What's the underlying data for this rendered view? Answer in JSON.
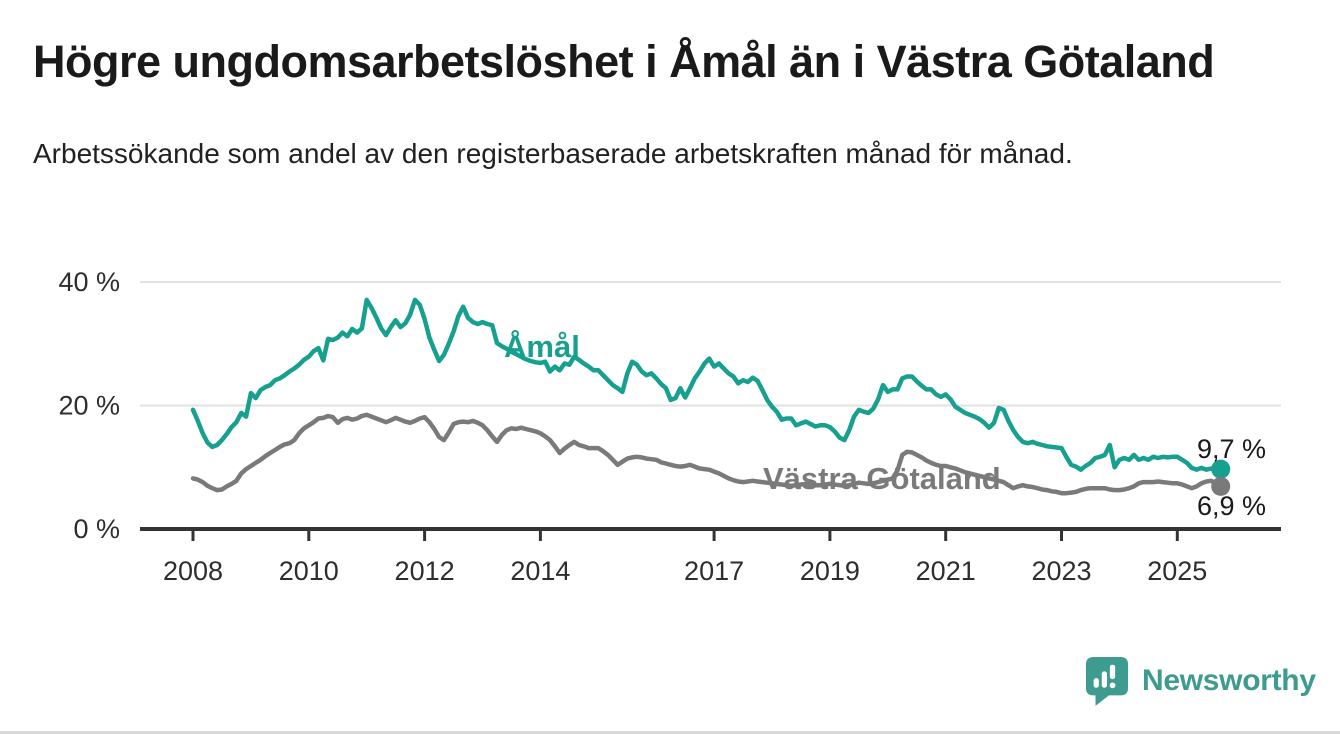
{
  "header": {
    "title": "Högre ungdomsarbetslöshet i Åmål än i Västra Götaland",
    "subtitle": "Arbetssökande som andel av den registerbaserade arbetskraften månad för månad."
  },
  "branding": {
    "logo_text": "Newsworthy",
    "logo_color": "#3d9b8f",
    "logo_icon": "bar-chart-speech-bubble-icon"
  },
  "chart_data": {
    "type": "line",
    "title": "Högre ungdomsarbetslöshet i Åmål än i Västra Götaland",
    "subtitle": "Arbetssökande som andel av den registerbaserade arbetskraften månad för månad.",
    "unit": "%",
    "grid": "horizontal",
    "legend_position": "inline-labels",
    "x_range": {
      "start": "2008-01",
      "end": "2025-10",
      "frequency": "monthly"
    },
    "ylim": [
      0,
      44
    ],
    "y_ticks": [
      {
        "label": "0 %",
        "value": 0
      },
      {
        "label": "20 %",
        "value": 20
      },
      {
        "label": "40 %",
        "value": 40
      }
    ],
    "x_ticks": [
      {
        "label": "2008",
        "year": 2008
      },
      {
        "label": "2010",
        "year": 2010
      },
      {
        "label": "2012",
        "year": 2012
      },
      {
        "label": "2014",
        "year": 2014
      },
      {
        "label": "2017",
        "year": 2017
      },
      {
        "label": "2019",
        "year": 2019
      },
      {
        "label": "2021",
        "year": 2021
      },
      {
        "label": "2023",
        "year": 2023
      },
      {
        "label": "2025",
        "year": 2025
      }
    ],
    "gridline_color": "#e2e2e2",
    "axis_color": "#333333",
    "series": [
      {
        "name": "Åmål",
        "color": "#17a08f",
        "end_label": "9,7 %",
        "end_value": 9.7,
        "values": [
          19.3,
          17.5,
          15.5,
          14.0,
          13.3,
          13.6,
          14.4,
          15.4,
          16.5,
          17.3,
          18.8,
          18.2,
          22.0,
          21.2,
          22.5,
          23.0,
          23.3,
          24.1,
          24.4,
          24.9,
          25.5,
          26.0,
          26.6,
          27.4,
          27.9,
          28.8,
          29.3,
          27.3,
          30.8,
          30.6,
          31.0,
          31.8,
          31.2,
          32.4,
          31.8,
          32.5,
          37.1,
          35.8,
          34.2,
          32.5,
          31.4,
          32.7,
          33.8,
          32.7,
          33.3,
          34.7,
          37.1,
          36.3,
          34.0,
          31.0,
          29.0,
          27.2,
          28.2,
          30.0,
          32.0,
          34.5,
          36.0,
          34.2,
          33.5,
          33.2,
          33.5,
          33.2,
          33.0,
          30.1,
          29.6,
          29.2,
          28.7,
          28.3,
          27.9,
          27.5,
          27.2,
          27.0,
          26.9,
          27.1,
          25.5,
          26.3,
          25.7,
          26.8,
          26.6,
          27.9,
          27.4,
          26.8,
          26.3,
          25.7,
          25.7,
          24.9,
          24.1,
          23.3,
          22.8,
          22.2,
          25.2,
          27.1,
          26.6,
          25.5,
          24.9,
          25.2,
          24.4,
          23.5,
          22.8,
          20.9,
          21.2,
          22.8,
          21.3,
          22.8,
          24.4,
          25.5,
          26.8,
          27.6,
          26.3,
          26.8,
          26.0,
          25.2,
          24.7,
          23.6,
          24.1,
          23.8,
          24.5,
          24.0,
          22.5,
          20.9,
          19.8,
          19.0,
          17.7,
          17.9,
          17.9,
          16.8,
          17.1,
          17.4,
          17.0,
          16.6,
          16.8,
          16.8,
          16.5,
          15.8,
          14.8,
          14.4,
          16.0,
          18.2,
          19.3,
          19.0,
          18.8,
          19.5,
          21.0,
          23.3,
          22.2,
          22.6,
          22.6,
          24.4,
          24.7,
          24.7,
          23.9,
          23.2,
          22.6,
          22.6,
          21.8,
          21.4,
          21.8,
          21.0,
          19.8,
          19.3,
          18.8,
          18.5,
          18.2,
          17.8,
          17.2,
          16.4,
          17.2,
          19.6,
          19.3,
          17.5,
          16.0,
          14.9,
          14.1,
          13.9,
          14.1,
          13.8,
          13.6,
          13.4,
          13.3,
          13.2,
          13.1,
          11.7,
          10.4,
          10.1,
          9.6,
          10.2,
          10.7,
          11.5,
          11.7,
          12.0,
          13.6,
          10.0,
          11.2,
          11.5,
          11.2,
          12.0,
          11.2,
          11.5,
          11.2,
          11.7,
          11.5,
          11.7,
          11.6,
          11.7,
          11.7,
          11.2,
          10.7,
          9.9,
          9.6,
          9.9,
          9.6,
          9.8,
          9.7,
          9.7
        ]
      },
      {
        "name": "Västra Götaland",
        "color": "#7a7a7a",
        "end_label": "6,9 %",
        "end_value": 6.9,
        "values": [
          8.2,
          8.0,
          7.6,
          7.0,
          6.6,
          6.3,
          6.4,
          6.9,
          7.3,
          7.8,
          9.0,
          9.7,
          10.2,
          10.7,
          11.2,
          11.8,
          12.3,
          12.8,
          13.3,
          13.7,
          13.9,
          14.4,
          15.5,
          16.3,
          16.8,
          17.3,
          17.9,
          18.0,
          18.3,
          18.1,
          17.2,
          17.8,
          18.0,
          17.7,
          17.9,
          18.3,
          18.5,
          18.2,
          17.9,
          17.6,
          17.3,
          17.6,
          18.0,
          17.7,
          17.4,
          17.2,
          17.5,
          17.9,
          18.1,
          17.3,
          16.2,
          14.9,
          14.4,
          15.6,
          17.0,
          17.3,
          17.4,
          17.3,
          17.5,
          17.2,
          16.8,
          16.0,
          15.0,
          14.1,
          15.2,
          16.0,
          16.3,
          16.2,
          16.4,
          16.2,
          16.0,
          15.8,
          15.5,
          15.0,
          14.4,
          13.4,
          12.3,
          13.0,
          13.6,
          14.1,
          13.6,
          13.4,
          13.1,
          13.1,
          13.1,
          12.6,
          12.0,
          11.2,
          10.4,
          10.9,
          11.4,
          11.6,
          11.7,
          11.6,
          11.4,
          11.3,
          11.2,
          10.8,
          10.6,
          10.4,
          10.2,
          10.1,
          10.2,
          10.4,
          10.1,
          9.8,
          9.7,
          9.6,
          9.3,
          9.0,
          8.6,
          8.2,
          7.9,
          7.7,
          7.6,
          7.7,
          7.8,
          7.7,
          7.6,
          7.5,
          7.4,
          7.3,
          7.2,
          7.1,
          7.0,
          7.1,
          7.2,
          7.3,
          7.2,
          7.1,
          7.1,
          7.2,
          7.3,
          7.2,
          7.1,
          7.0,
          7.1,
          7.3,
          7.5,
          7.4,
          7.3,
          7.4,
          7.6,
          7.8,
          8.0,
          8.2,
          9.5,
          12.0,
          12.5,
          12.4,
          12.0,
          11.6,
          11.1,
          10.7,
          10.4,
          10.2,
          10.2,
          10.0,
          9.8,
          9.5,
          9.2,
          9.0,
          8.8,
          8.6,
          8.4,
          8.2,
          8.0,
          7.8,
          7.6,
          7.1,
          6.6,
          6.9,
          7.1,
          6.9,
          6.8,
          6.6,
          6.4,
          6.3,
          6.1,
          6.0,
          5.8,
          5.8,
          5.9,
          6.0,
          6.3,
          6.5,
          6.6,
          6.6,
          6.6,
          6.6,
          6.4,
          6.3,
          6.3,
          6.4,
          6.6,
          6.9,
          7.4,
          7.6,
          7.6,
          7.6,
          7.7,
          7.6,
          7.5,
          7.4,
          7.4,
          7.2,
          6.9,
          6.6,
          6.9,
          7.4,
          7.7,
          7.8,
          7.4,
          6.9
        ]
      }
    ]
  }
}
